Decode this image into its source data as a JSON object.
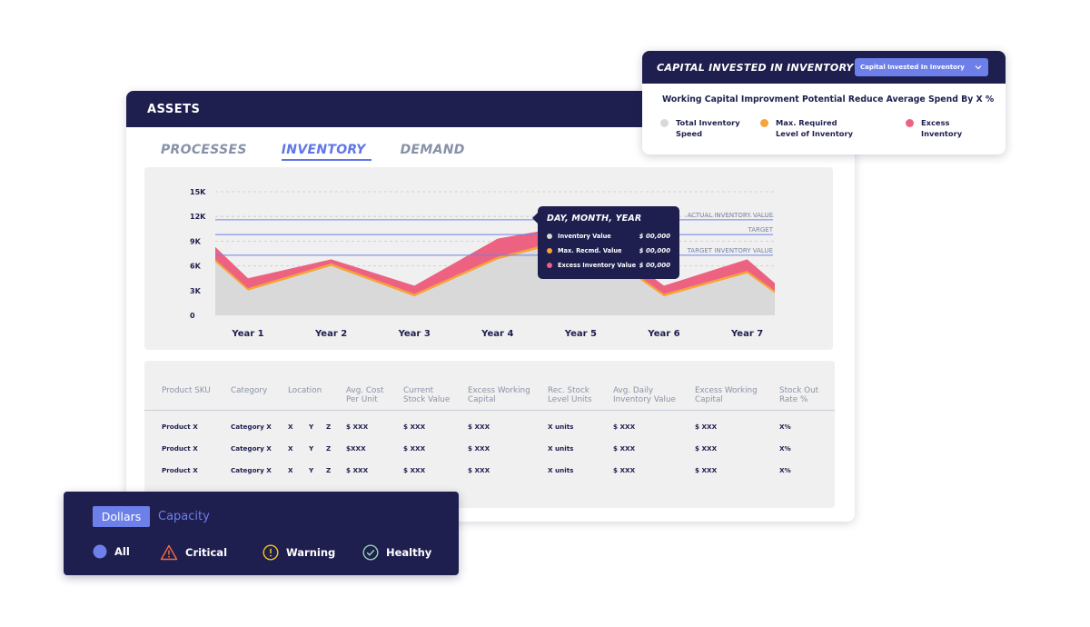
{
  "assets": {
    "title": "ASSETS",
    "tabs": [
      {
        "label": "PROCESSES",
        "active": false
      },
      {
        "label": "INVENTORY",
        "active": true
      },
      {
        "label": "DEMAND",
        "active": false
      }
    ]
  },
  "chart_data": {
    "type": "area",
    "categories": [
      "Year 1",
      "Year 2",
      "Year 3",
      "Year 4",
      "Year 5",
      "Year 6",
      "Year 7"
    ],
    "y_ticks": [
      "0",
      "3K",
      "6K",
      "9K",
      "12K",
      "15K"
    ],
    "ylim": [
      0,
      15000
    ],
    "reference_lines": [
      {
        "label": "ACTUAL INVENTORY VALUE",
        "value": 11600
      },
      {
        "label": "TARGET",
        "value": 9800
      },
      {
        "label": "TARGET INVENTORY VALUE",
        "value": 7300
      }
    ],
    "series": [
      {
        "name": "Inventory Value",
        "color": "#d9d9d9",
        "x": [
          0,
          0.5,
          1.5,
          2.5,
          3.5,
          4.5,
          5.5,
          6.5,
          7.2
        ],
        "values": [
          6500,
          3000,
          6000,
          2300,
          6800,
          9400,
          2300,
          5100,
          2700
        ]
      },
      {
        "name": "Max. Recmd. Value",
        "color": "#f5a33a",
        "x": [
          0,
          0.5,
          1.5,
          2.5,
          3.5,
          4.5,
          5.5,
          6.5,
          7.2
        ],
        "values": [
          6800,
          3300,
          6300,
          2600,
          7100,
          9700,
          2600,
          5400,
          3000
        ]
      },
      {
        "name": "Excess Inventory Value",
        "color": "#ee6281",
        "x": [
          0,
          0.5,
          1.5,
          2.5,
          3.5,
          4.5,
          5.5,
          6.5,
          7.2
        ],
        "values": [
          8300,
          4500,
          6800,
          3600,
          9300,
          11100,
          3600,
          6800,
          3900
        ]
      }
    ]
  },
  "tooltip": {
    "title": "DAY, MONTH, YEAR",
    "rows": [
      {
        "label": "Inventory Value",
        "value": "$ 00,000",
        "color": "#d9d9d9"
      },
      {
        "label": "Max. Recmd. Value",
        "value": "$ 00,000",
        "color": "#f5a33a"
      },
      {
        "label": "Excess Inventory Value",
        "value": "$ 00,000",
        "color": "#ee6281"
      }
    ]
  },
  "table": {
    "headers": [
      [
        "Product SKU"
      ],
      [
        "Category"
      ],
      [
        "Location"
      ],
      [
        "Avg. Cost",
        "Per Unit"
      ],
      [
        "Current",
        "Stock Value"
      ],
      [
        "Excess Working",
        "Capital"
      ],
      [
        "Rec. Stock",
        "Level Units"
      ],
      [
        "Avg. Daily",
        "Inventory Value"
      ],
      [
        "Excess Working",
        "Capital"
      ],
      [
        "Stock Out",
        "Rate %"
      ]
    ],
    "rows": [
      [
        "Product X",
        "Category X",
        "X",
        "Y",
        "Z",
        "$ XXX",
        "$ XXX",
        "$ XXX",
        "X units",
        "$ XXX",
        "$ XXX",
        "X%"
      ],
      [
        "Product X",
        "Category X",
        "X",
        "Y",
        "Z",
        "$XXX",
        "$ XXX",
        "$ XXX",
        "X units",
        "$ XXX",
        "$ XXX",
        "X%"
      ],
      [
        "Product X",
        "Category X",
        "X",
        "Y",
        "Z",
        "$ XXX",
        "$ XXX",
        "$ XXX",
        "X units",
        "$ XXX",
        "$ XXX",
        "X%"
      ]
    ]
  },
  "capital": {
    "title": "CAPITAL INVESTED IN INVENTORY",
    "select_value": "Capital Invested In Inventory",
    "subtitle": "Working Capital Improvment Potential Reduce Average Spend By X %",
    "legend": [
      {
        "line1": "Total Inventory",
        "line2": "Speed",
        "color": "#d9d9d9"
      },
      {
        "line1": "Max. Required",
        "line2": "Level of Inventory",
        "color": "#f5a33a"
      },
      {
        "line1": "Excess",
        "line2": "Inventory",
        "color": "#ee6281"
      }
    ]
  },
  "status": {
    "toggle": {
      "dollars": "Dollars",
      "capacity": "Capacity",
      "selected": "Dollars"
    },
    "filters": [
      {
        "label": "All",
        "icon": "filled-circle-icon",
        "color": "#6d80ea"
      },
      {
        "label": "Critical",
        "icon": "warning-triangle-icon",
        "color": "#f26b3a"
      },
      {
        "label": "Warning",
        "icon": "exclamation-circle-icon",
        "color": "#f5c518"
      },
      {
        "label": "Healthy",
        "icon": "check-circle-icon",
        "color": "#8fd3a8"
      }
    ]
  }
}
